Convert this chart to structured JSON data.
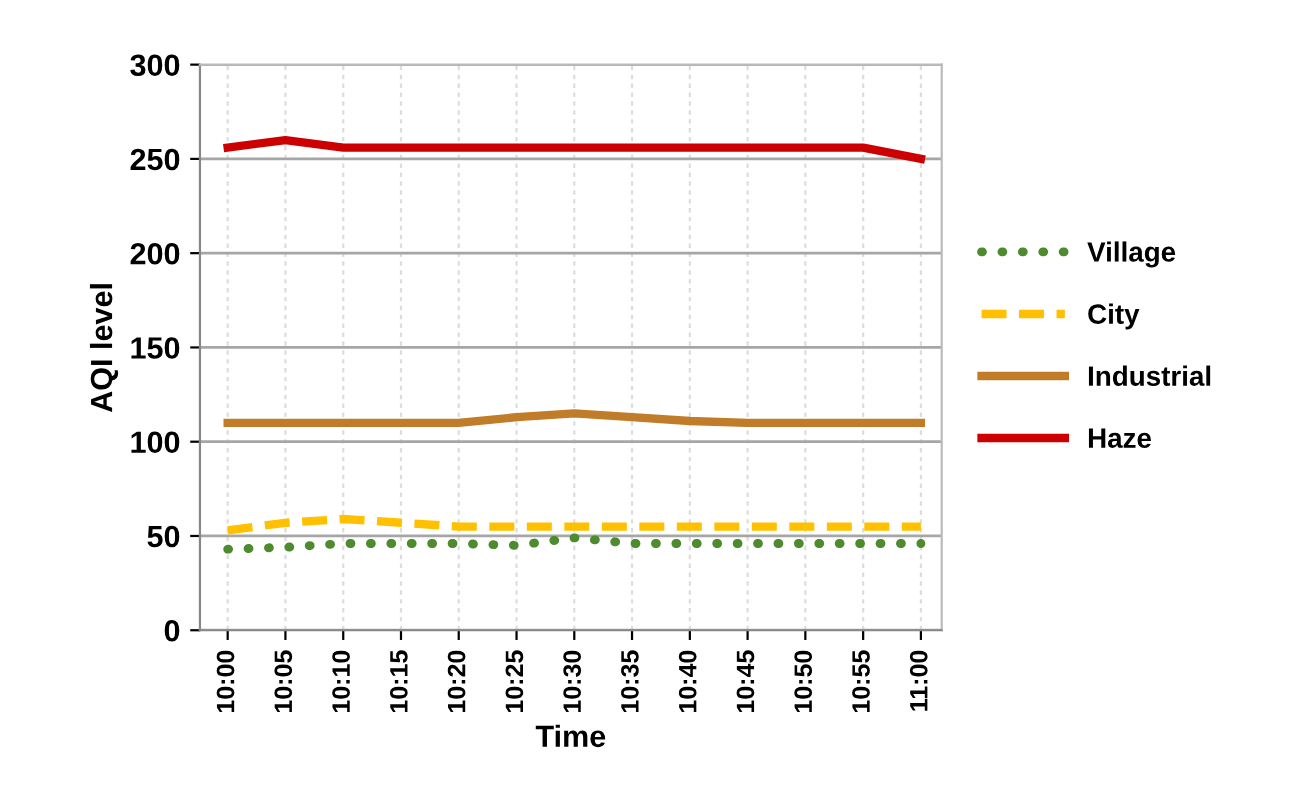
{
  "chart_data": {
    "type": "line",
    "xlabel": "Time",
    "ylabel": "AQI level",
    "x": [
      10.0,
      10.0833,
      10.1667,
      10.25,
      10.3333,
      10.4167,
      10.5,
      10.5833,
      10.6667,
      10.75,
      10.8333,
      10.9167,
      11.0
    ],
    "xlim": [
      9.96,
      11.03
    ],
    "xticks": [
      {
        "value": 10.0,
        "label": "10:00"
      },
      {
        "value": 10.0833,
        "label": "10:05"
      },
      {
        "value": 10.1667,
        "label": "10:10"
      },
      {
        "value": 10.25,
        "label": "10:15"
      },
      {
        "value": 10.3333,
        "label": "10:20"
      },
      {
        "value": 10.4167,
        "label": "10:25"
      },
      {
        "value": 10.5,
        "label": "10:30"
      },
      {
        "value": 10.5833,
        "label": "10:35"
      },
      {
        "value": 10.6667,
        "label": "10:40"
      },
      {
        "value": 10.75,
        "label": "10:45"
      },
      {
        "value": 10.8333,
        "label": "10:50"
      },
      {
        "value": 10.9167,
        "label": "10:55"
      },
      {
        "value": 11.0,
        "label": "11:00"
      }
    ],
    "ylim": [
      0,
      300
    ],
    "yticks": [
      0,
      50,
      100,
      150,
      200,
      250,
      300
    ],
    "grid": true,
    "legend": "right",
    "marker": "none",
    "series": [
      {
        "name": "Village",
        "color": "#4e8a2e",
        "line_style": "dotted",
        "values": [
          43,
          44,
          46,
          46,
          46,
          45,
          49,
          46,
          46,
          46,
          46,
          46,
          46
        ]
      },
      {
        "name": "City",
        "color": "#ffc000",
        "line_style": "dashed",
        "values": [
          53,
          57,
          59,
          57,
          55,
          55,
          55,
          55,
          55,
          55,
          55,
          55,
          55
        ]
      },
      {
        "name": "Industrial",
        "color": "#c07c28",
        "line_style": "solid",
        "values": [
          110,
          110,
          110,
          110,
          110,
          113,
          115,
          113,
          111,
          110,
          110,
          110,
          110
        ]
      },
      {
        "name": "Haze",
        "color": "#cc0000",
        "line_style": "solid",
        "values": [
          256,
          260,
          256,
          256,
          256,
          256,
          256,
          256,
          256,
          256,
          256,
          256,
          250
        ]
      }
    ]
  }
}
